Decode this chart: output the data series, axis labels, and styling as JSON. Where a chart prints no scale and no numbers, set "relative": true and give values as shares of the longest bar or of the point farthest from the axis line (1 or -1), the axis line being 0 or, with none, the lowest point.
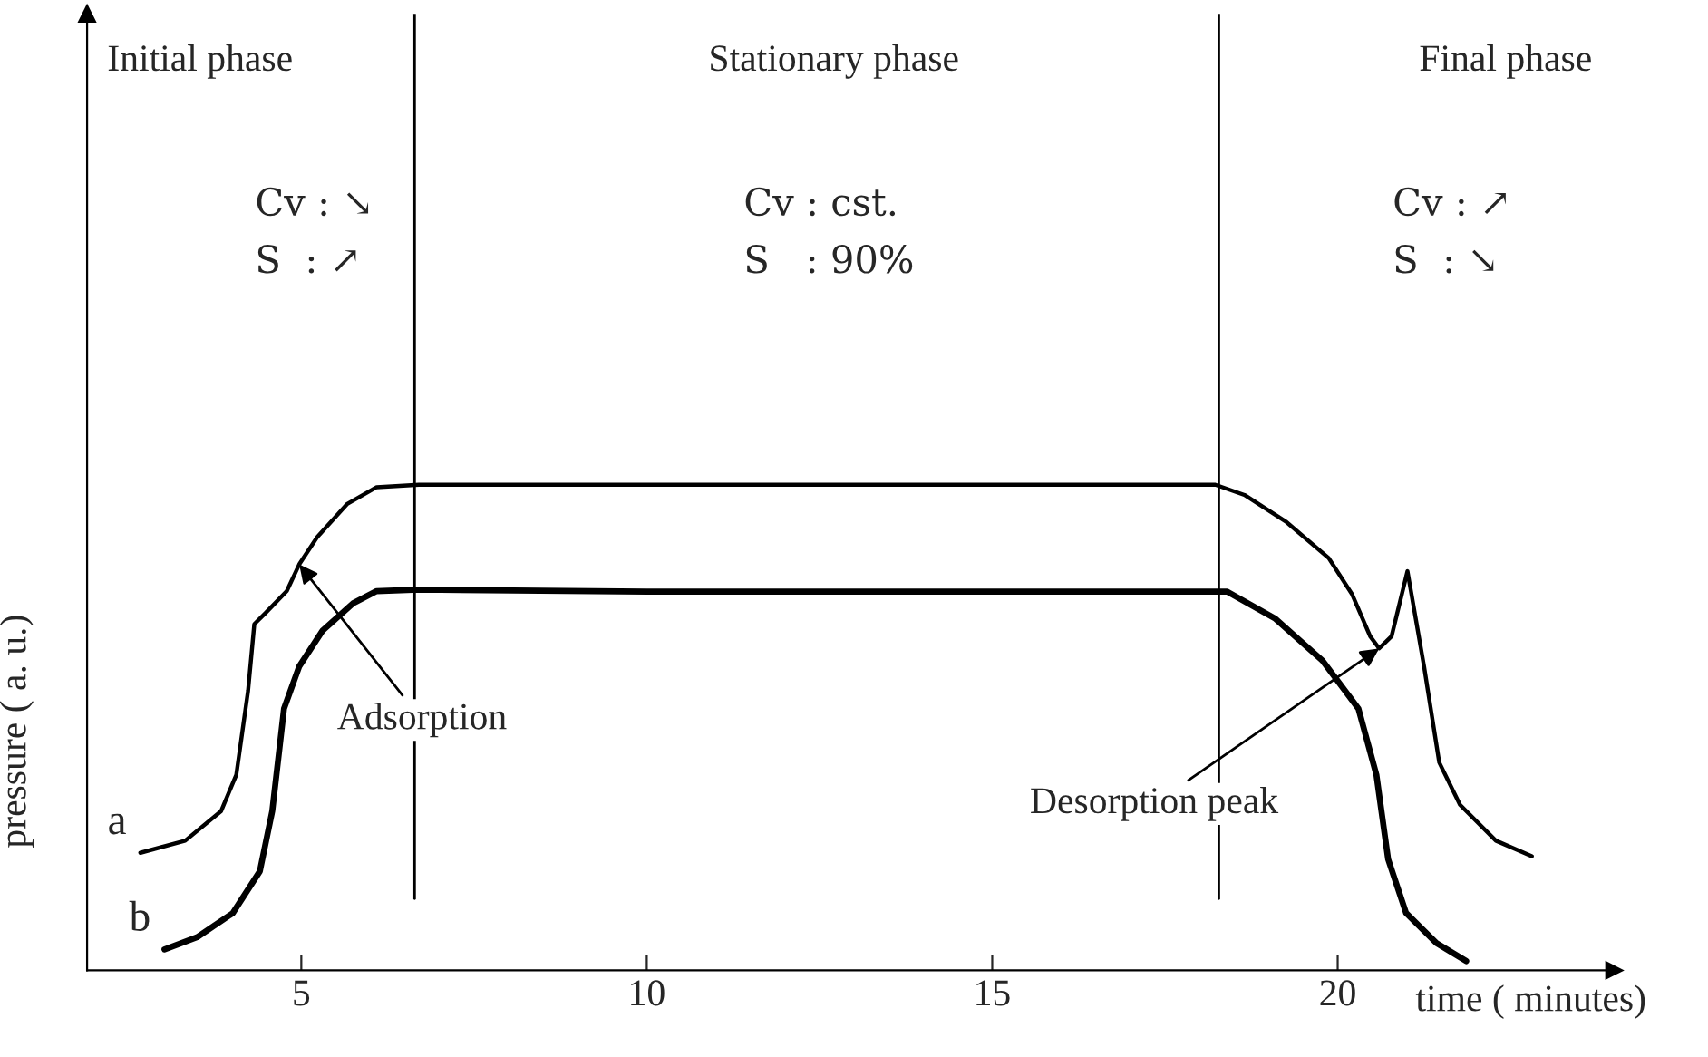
{
  "chart_data": {
    "type": "line",
    "relative": true,
    "xlabel": "time ( minutes)",
    "ylabel": "pressure ( a. u.)",
    "xlim": [
      1.9,
      24
    ],
    "xticks": [
      5,
      10,
      15,
      20
    ],
    "grid": false,
    "marker": "none",
    "line_style": "solid",
    "series": [
      {
        "name": "a",
        "color": "#000000",
        "x": [
          2.67,
          3.32,
          3.84,
          4.06,
          4.23,
          4.32,
          4.49,
          4.79,
          4.97,
          5.23,
          5.66,
          6.09,
          6.7,
          10,
          14,
          18.23,
          18.65,
          19.26,
          19.87,
          20.21,
          20.47,
          20.6,
          20.78,
          21.01,
          21.25,
          21.47,
          21.77,
          22.29,
          22.81
        ],
        "values": [
          0.242,
          0.267,
          0.328,
          0.403,
          0.576,
          0.713,
          0.737,
          0.781,
          0.836,
          0.892,
          0.96,
          0.995,
          1.0,
          1.0,
          1.0,
          1.0,
          0.979,
          0.923,
          0.849,
          0.774,
          0.688,
          0.663,
          0.688,
          0.822,
          0.626,
          0.428,
          0.341,
          0.267,
          0.235
        ]
      },
      {
        "name": "b",
        "color": "#000000",
        "x": [
          3.02,
          3.49,
          4.01,
          4.4,
          4.58,
          4.75,
          4.97,
          5.31,
          5.75,
          6.09,
          6.7,
          10,
          14,
          18.4,
          19.09,
          19.78,
          20.3,
          20.56,
          20.73,
          20.99,
          21.43,
          21.86
        ],
        "values": [
          0.043,
          0.068,
          0.118,
          0.204,
          0.328,
          0.539,
          0.626,
          0.7,
          0.756,
          0.781,
          0.784,
          0.78,
          0.78,
          0.78,
          0.725,
          0.638,
          0.539,
          0.403,
          0.229,
          0.118,
          0.056,
          0.019
        ]
      }
    ],
    "ref_lines": [
      {
        "axis": "x",
        "value": 6.64,
        "label": null,
        "color": "#000000",
        "line_style": "solid"
      },
      {
        "axis": "x",
        "value": 18.28,
        "label": null,
        "color": "#000000",
        "line_style": "solid"
      }
    ],
    "annotations": [
      "Initial phase",
      "Stationary phase",
      "Final phase",
      "Cv : ↘",
      "S  : ↗",
      "Cv : cst.",
      "S   : 90%",
      "Cv : ↗",
      "S  : ↘",
      {
        "text": "Adsorption",
        "x": 4.97,
        "y": 0.836
      },
      {
        "text": "Desorption peak",
        "x": 20.6,
        "y": 0.663
      }
    ]
  }
}
